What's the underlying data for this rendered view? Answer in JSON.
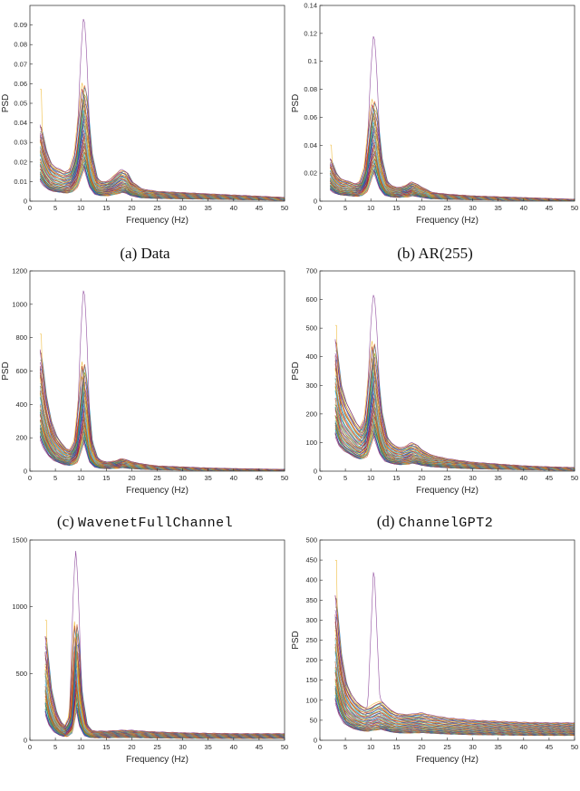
{
  "chart_data": [
    {
      "type": "line",
      "panel": "a",
      "caption_label": "(a) Data",
      "caption_name": "",
      "xlabel": "Frequency (Hz)",
      "ylabel": "PSD",
      "xlim": [
        0,
        50
      ],
      "ylim": [
        0,
        0.1
      ],
      "xticks": [
        "0",
        "5",
        "10",
        "15",
        "20",
        "25",
        "30",
        "35",
        "40",
        "45",
        "50"
      ],
      "yticks": [
        "0",
        "0.01",
        "0.02",
        "0.03",
        "0.04",
        "0.05",
        "0.06",
        "0.07",
        "0.08",
        "0.09"
      ],
      "ytick_values": [
        0,
        0.01,
        0.02,
        0.03,
        0.04,
        0.05,
        0.06,
        0.07,
        0.08,
        0.09
      ],
      "profile": {
        "x": [
          2,
          3,
          4,
          5,
          6,
          7,
          8,
          9,
          10,
          10.5,
          11,
          12,
          13,
          14,
          15,
          16,
          17,
          18,
          19,
          20,
          22,
          25,
          30,
          35,
          40,
          45,
          50
        ],
        "y": [
          0.032,
          0.022,
          0.016,
          0.014,
          0.013,
          0.012,
          0.013,
          0.02,
          0.04,
          0.05,
          0.045,
          0.02,
          0.01,
          0.008,
          0.008,
          0.009,
          0.011,
          0.013,
          0.012,
          0.008,
          0.005,
          0.004,
          0.0035,
          0.003,
          0.0025,
          0.002,
          0.0015
        ]
      },
      "peak_max": 0.096,
      "low_max": 0.057,
      "beta_max": 0.023,
      "n_series": 60
    },
    {
      "type": "line",
      "panel": "b",
      "caption_label": "(b) AR(255)",
      "caption_name": "",
      "xlabel": "Frequency (Hz)",
      "ylabel": "PSD",
      "xlim": [
        0,
        50
      ],
      "ylim": [
        0,
        0.14
      ],
      "xticks": [
        "0",
        "5",
        "10",
        "15",
        "20",
        "25",
        "30",
        "35",
        "40",
        "45",
        "50"
      ],
      "yticks": [
        "0",
        "0.02",
        "0.04",
        "0.06",
        "0.08",
        "0.1",
        "0.12",
        "0.14"
      ],
      "ytick_values": [
        0,
        0.02,
        0.04,
        0.06,
        0.08,
        0.1,
        0.12,
        0.14
      ],
      "profile": {
        "x": [
          2,
          3,
          4,
          5,
          6,
          7,
          8,
          9,
          10,
          10.5,
          11,
          12,
          13,
          14,
          15,
          16,
          17,
          18,
          19,
          20,
          22,
          25,
          30,
          35,
          40,
          45,
          50
        ],
        "y": [
          0.025,
          0.017,
          0.013,
          0.012,
          0.011,
          0.01,
          0.011,
          0.02,
          0.05,
          0.06,
          0.055,
          0.025,
          0.012,
          0.009,
          0.008,
          0.008,
          0.009,
          0.011,
          0.01,
          0.008,
          0.005,
          0.004,
          0.003,
          0.0025,
          0.002,
          0.0015,
          0.001
        ]
      },
      "peak_max": 0.122,
      "low_max": 0.04,
      "beta_max": 0.02,
      "n_series": 60
    },
    {
      "type": "line",
      "panel": "c",
      "caption_label": "(c) ",
      "caption_name": "WavenetFullChannel",
      "xlabel": "Frequency (Hz)",
      "ylabel": "PSD",
      "xlim": [
        0,
        50
      ],
      "ylim": [
        0,
        1200
      ],
      "xticks": [
        "0",
        "5",
        "10",
        "15",
        "20",
        "25",
        "30",
        "35",
        "40",
        "45",
        "50"
      ],
      "yticks": [
        "0",
        "200",
        "400",
        "600",
        "800",
        "1000",
        "1200"
      ],
      "ytick_values": [
        0,
        200,
        400,
        600,
        800,
        1000,
        1200
      ],
      "profile": {
        "x": [
          2,
          3,
          4,
          5,
          6,
          7,
          8,
          9,
          10,
          10.5,
          11,
          12,
          13,
          14,
          15,
          16,
          17,
          18,
          19,
          20,
          22,
          25,
          30,
          35,
          40,
          45,
          50
        ],
        "y": [
          600,
          380,
          250,
          180,
          140,
          110,
          100,
          150,
          400,
          550,
          450,
          150,
          70,
          50,
          45,
          45,
          50,
          60,
          55,
          45,
          35,
          25,
          20,
          15,
          12,
          10,
          8
        ]
      },
      "peak_max": 1120,
      "low_max": 820,
      "beta_max": 100,
      "n_series": 60
    },
    {
      "type": "line",
      "panel": "d",
      "caption_label": "(d) ",
      "caption_name": "ChannelGPT2",
      "xlabel": "Frequency (Hz)",
      "ylabel": "PSD",
      "xlim": [
        0,
        50
      ],
      "ylim": [
        0,
        700
      ],
      "xticks": [
        "0",
        "5",
        "10",
        "15",
        "20",
        "25",
        "30",
        "35",
        "40",
        "45",
        "50"
      ],
      "yticks": [
        "0",
        "100",
        "200",
        "300",
        "400",
        "500",
        "600",
        "700"
      ],
      "ytick_values": [
        0,
        100,
        200,
        300,
        400,
        500,
        600,
        700
      ],
      "profile": {
        "x": [
          3,
          4,
          5,
          6,
          7,
          8,
          9,
          10,
          10.5,
          11,
          12,
          13,
          14,
          15,
          16,
          17,
          18,
          19,
          20,
          22,
          25,
          30,
          35,
          40,
          45,
          50
        ],
        "y": [
          380,
          250,
          200,
          170,
          140,
          120,
          150,
          300,
          380,
          320,
          170,
          100,
          80,
          70,
          65,
          70,
          80,
          75,
          60,
          45,
          35,
          25,
          20,
          15,
          12,
          10
        ]
      },
      "peak_max": 630,
      "low_max": 510,
      "beta_max": 140,
      "n_series": 60
    },
    {
      "type": "line",
      "panel": "e",
      "caption_label": "",
      "caption_name": "",
      "xlabel": "Frequency (Hz)",
      "ylabel": "",
      "xlim": [
        0,
        50
      ],
      "ylim": [
        0,
        1500
      ],
      "xticks": [
        "0",
        "5",
        "10",
        "15",
        "20",
        "25",
        "30",
        "35",
        "40",
        "45",
        "50"
      ],
      "yticks": [
        "0",
        "500",
        "1000",
        "1500"
      ],
      "ytick_values": [
        0,
        500,
        1000,
        1500
      ],
      "profile": {
        "x": [
          3,
          4,
          5,
          6,
          7,
          8,
          8.5,
          9,
          9.5,
          10,
          11,
          12,
          13,
          15,
          18,
          20,
          22,
          25,
          30,
          35,
          40,
          45,
          50
        ],
        "y": [
          650,
          320,
          180,
          110,
          80,
          150,
          450,
          750,
          600,
          300,
          100,
          60,
          55,
          55,
          60,
          60,
          55,
          50,
          45,
          42,
          40,
          40,
          40
        ]
      },
      "peak_max": 1420,
      "low_max": 900,
      "beta_max": 80,
      "n_series": 60
    },
    {
      "type": "line",
      "panel": "f",
      "caption_label": "",
      "caption_name": "",
      "xlabel": "Frequency (Hz)",
      "ylabel": "PSD",
      "xlim": [
        0,
        50
      ],
      "ylim": [
        0,
        500
      ],
      "xticks": [
        "0",
        "5",
        "10",
        "15",
        "20",
        "25",
        "30",
        "35",
        "40",
        "45",
        "50"
      ],
      "yticks": [
        "0",
        "50",
        "100",
        "150",
        "200",
        "250",
        "300",
        "350",
        "400",
        "450",
        "500"
      ],
      "ytick_values": [
        0,
        50,
        100,
        150,
        200,
        250,
        300,
        350,
        400,
        450,
        500
      ],
      "profile": {
        "x": [
          3,
          4,
          5,
          6,
          7,
          8,
          9,
          10,
          11,
          12,
          13,
          14,
          15,
          16,
          18,
          20,
          22,
          25,
          30,
          35,
          40,
          45,
          50
        ],
        "y": [
          300,
          180,
          120,
          95,
          80,
          70,
          65,
          68,
          75,
          80,
          70,
          60,
          55,
          52,
          52,
          55,
          50,
          45,
          40,
          38,
          36,
          35,
          35
        ]
      },
      "peak_max": 450,
      "low_max": 450,
      "beta_max": 85,
      "n_series": 60
    }
  ]
}
